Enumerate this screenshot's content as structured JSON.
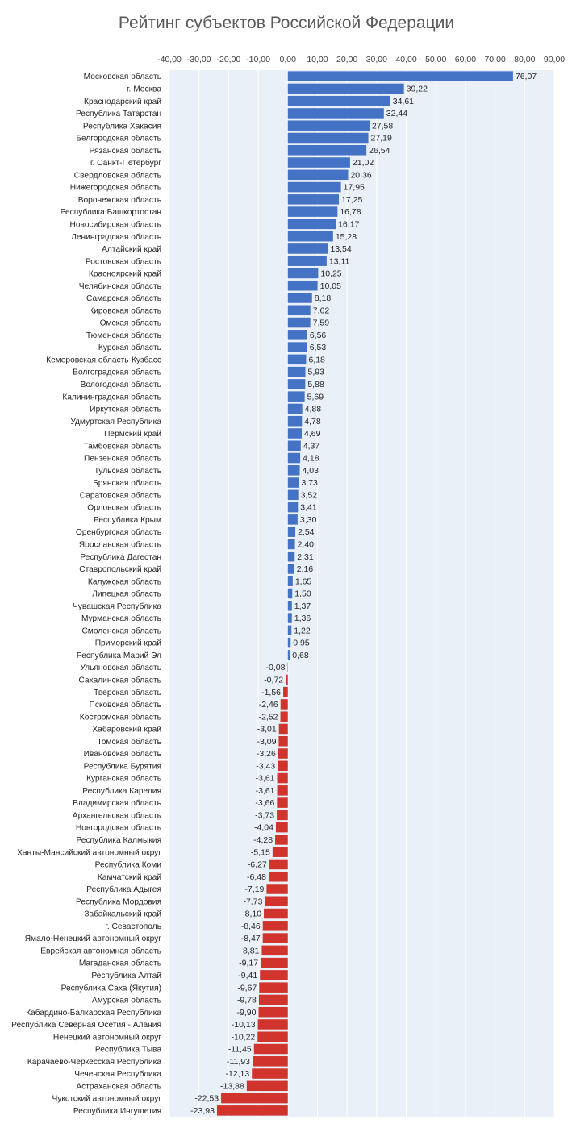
{
  "chart_data": {
    "type": "bar",
    "orientation": "horizontal",
    "title": "Рейтинг субъектов Российской Федерации",
    "xlim": [
      -40,
      90
    ],
    "ticks": [
      "-40,00",
      "-30,00",
      "-20,00",
      "-10,00",
      "0,00",
      "10,00",
      "20,00",
      "30,00",
      "40,00",
      "50,00",
      "60,00",
      "70,00",
      "80,00",
      "90,00"
    ],
    "grid": true,
    "colors": {
      "positive": "#4472c4",
      "negative": "#d0342c",
      "plot_bg": "#eaf0f8"
    },
    "categories": [
      "Московская область",
      "г. Москва",
      "Краснодарский край",
      "Республика Татарстан",
      "Республика Хакасия",
      "Белгородская область",
      "Рязанская область",
      "г. Санкт-Петербург",
      "Свердловская область",
      "Нижегородская область",
      "Воронежская область",
      "Республика Башкортостан",
      "Новосибирская область",
      "Ленинградская область",
      "Алтайский край",
      "Ростовская область",
      "Красноярский край",
      "Челябинская область",
      "Самарская область",
      "Кировская область",
      "Омская область",
      "Тюменская область",
      "Курская область",
      "Кемеровская область-Кузбасс",
      "Волгоградская область",
      "Вологодская область",
      "Калининградская область",
      "Иркутская область",
      "Удмуртская Республика",
      "Пермский край",
      "Тамбовская область",
      "Пензенская область",
      "Тульская область",
      "Брянская область",
      "Саратовская область",
      "Орловская область",
      "Республика Крым",
      "Оренбургская область",
      "Ярославская область",
      "Республика Дагестан",
      "Ставропольский край",
      "Калужская область",
      "Липецкая область",
      "Чувашская Республика",
      "Мурманская область",
      "Смоленская область",
      "Приморский край",
      "Республика Марий Эл",
      "Ульяновская область",
      "Сахалинская область",
      "Тверская область",
      "Псковская область",
      "Костромская область",
      "Хабаровский край",
      "Томская область",
      "Ивановская область",
      "Республика Бурятия",
      "Курганская область",
      "Республика Карелия",
      "Владимирская область",
      "Архангельская область",
      "Новгородская область",
      "Республика Калмыкия",
      "Ханты-Мансийский автономный округ",
      "Республика Коми",
      "Камчатский край",
      "Республика Адыгея",
      "Республика Мордовия",
      "Забайкальский край",
      "г. Севастополь",
      "Ямало-Ненецкий автономный округ",
      "Еврейская автономная область",
      "Магаданская область",
      "Республика Алтай",
      "Республика Саха (Якутия)",
      "Амурская область",
      "Кабардино-Балкарская Республика",
      "Республика Северная Осетия - Алания",
      "Ненецкий автономный округ",
      "Республика Тыва",
      "Карачаево-Черкесская Республика",
      "Чеченская Республика",
      "Астраханская область",
      "Чукотский автономный округ",
      "Республика Ингушетия"
    ],
    "values": [
      76.07,
      39.22,
      34.61,
      32.44,
      27.58,
      27.19,
      26.54,
      21.02,
      20.36,
      17.95,
      17.25,
      16.78,
      16.17,
      15.28,
      13.54,
      13.11,
      10.25,
      10.05,
      8.18,
      7.62,
      7.59,
      6.56,
      6.53,
      6.18,
      5.93,
      5.88,
      5.69,
      4.88,
      4.78,
      4.69,
      4.37,
      4.18,
      4.03,
      3.73,
      3.52,
      3.41,
      3.3,
      2.54,
      2.4,
      2.31,
      2.16,
      1.65,
      1.5,
      1.37,
      1.36,
      1.22,
      0.95,
      0.68,
      -0.08,
      -0.72,
      -1.56,
      -2.46,
      -2.52,
      -3.01,
      -3.09,
      -3.26,
      -3.43,
      -3.61,
      -3.61,
      -3.66,
      -3.73,
      -4.04,
      -4.28,
      -5.15,
      -6.27,
      -6.48,
      -7.19,
      -7.73,
      -8.1,
      -8.46,
      -8.47,
      -8.81,
      -9.17,
      -9.41,
      -9.67,
      -9.78,
      -9.9,
      -10.13,
      -10.22,
      -11.45,
      -11.93,
      -12.13,
      -13.88,
      -22.53,
      -23.93
    ],
    "value_labels": [
      "76,07",
      "39,22",
      "34,61",
      "32,44",
      "27,58",
      "27,19",
      "26,54",
      "21,02",
      "20,36",
      "17,95",
      "17,25",
      "16,78",
      "16,17",
      "15,28",
      "13,54",
      "13,11",
      "10,25",
      "10,05",
      "8,18",
      "7,62",
      "7,59",
      "6,56",
      "6,53",
      "6,18",
      "5,93",
      "5,88",
      "5,69",
      "4,88",
      "4,78",
      "4,69",
      "4,37",
      "4,18",
      "4,03",
      "3,73",
      "3,52",
      "3,41",
      "3,30",
      "2,54",
      "2,40",
      "2,31",
      "2,16",
      "1,65",
      "1,50",
      "1,37",
      "1,36",
      "1,22",
      "0,95",
      "0,68",
      "-0,08",
      "-0,72",
      "-1,56",
      "-2,46",
      "-2,52",
      "-3,01",
      "-3,09",
      "-3,26",
      "-3,43",
      "-3,61",
      "-3,61",
      "-3,66",
      "-3,73",
      "-4,04",
      "-4,28",
      "-5,15",
      "-6,27",
      "-6,48",
      "-7,19",
      "-7,73",
      "-8,10",
      "-8,46",
      "-8,47",
      "-8,81",
      "-9,17",
      "-9,41",
      "-9,67",
      "-9,78",
      "-9,90",
      "-10,13",
      "-10,22",
      "-11,45",
      "-11,93",
      "-12,13",
      "-13,88",
      "-22,53",
      "-23,93"
    ]
  }
}
